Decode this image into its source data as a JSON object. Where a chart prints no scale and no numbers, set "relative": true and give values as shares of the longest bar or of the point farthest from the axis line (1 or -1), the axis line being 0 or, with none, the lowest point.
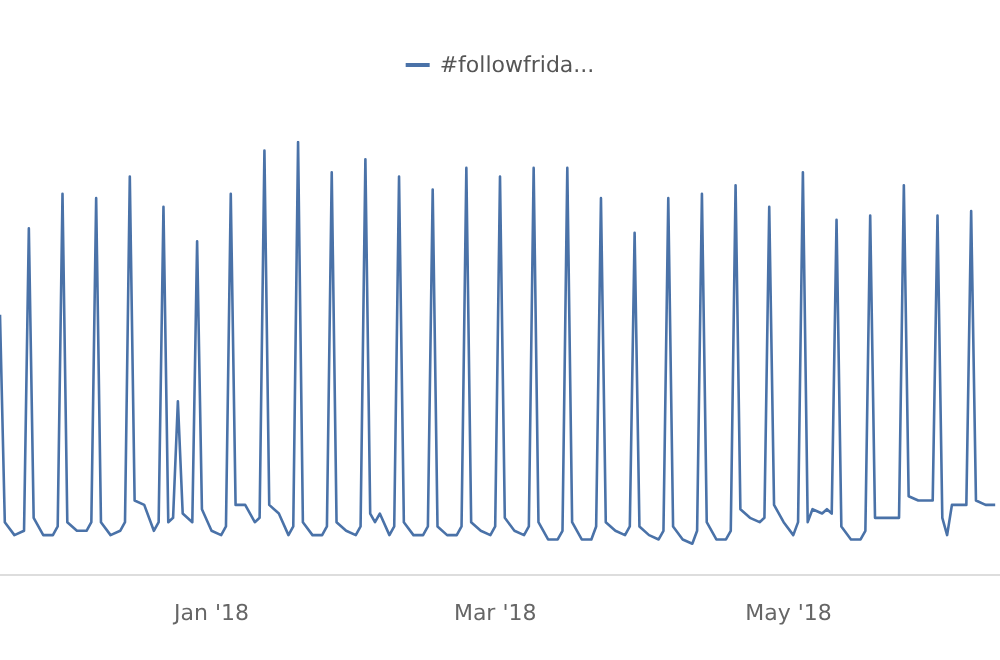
{
  "chart_data": {
    "type": "line",
    "relative": true,
    "legend": "top",
    "marker": "none",
    "line_style": "solid",
    "xlim": [
      "2017-11-18",
      "2018-06-14"
    ],
    "xticks": [
      {
        "value": "2018-01-01",
        "label": "Jan '18"
      },
      {
        "value": "2018-03-01",
        "label": "Mar '18"
      },
      {
        "value": "2018-05-01",
        "label": "May '18"
      }
    ],
    "series": [
      {
        "name": "#followfrida...",
        "color": "#4a72a8",
        "x": [
          "2017-11-18",
          "2017-11-19",
          "2017-11-21",
          "2017-11-23",
          "2017-11-24",
          "2017-11-25",
          "2017-11-27",
          "2017-11-29",
          "2017-11-30",
          "2017-12-01",
          "2017-12-02",
          "2017-12-04",
          "2017-12-06",
          "2017-12-07",
          "2017-12-08",
          "2017-12-09",
          "2017-12-11",
          "2017-12-13",
          "2017-12-14",
          "2017-12-15",
          "2017-12-16",
          "2017-12-18",
          "2017-12-20",
          "2017-12-21",
          "2017-12-22",
          "2017-12-23",
          "2017-12-24",
          "2017-12-25",
          "2017-12-26",
          "2017-12-28",
          "2017-12-29",
          "2017-12-30",
          "2018-01-01",
          "2018-01-03",
          "2018-01-04",
          "2018-01-05",
          "2018-01-06",
          "2018-01-08",
          "2018-01-10",
          "2018-01-11",
          "2018-01-12",
          "2018-01-13",
          "2018-01-15",
          "2018-01-17",
          "2018-01-18",
          "2018-01-19",
          "2018-01-20",
          "2018-01-22",
          "2018-01-24",
          "2018-01-25",
          "2018-01-26",
          "2018-01-27",
          "2018-01-29",
          "2018-01-31",
          "2018-02-01",
          "2018-02-02",
          "2018-02-03",
          "2018-02-04",
          "2018-02-05",
          "2018-02-07",
          "2018-02-08",
          "2018-02-09",
          "2018-02-10",
          "2018-02-12",
          "2018-02-14",
          "2018-02-15",
          "2018-02-16",
          "2018-02-17",
          "2018-02-19",
          "2018-02-21",
          "2018-02-22",
          "2018-02-23",
          "2018-02-24",
          "2018-02-26",
          "2018-02-28",
          "2018-03-01",
          "2018-03-02",
          "2018-03-03",
          "2018-03-05",
          "2018-03-07",
          "2018-03-08",
          "2018-03-09",
          "2018-03-10",
          "2018-03-12",
          "2018-03-14",
          "2018-03-15",
          "2018-03-16",
          "2018-03-17",
          "2018-03-19",
          "2018-03-21",
          "2018-03-22",
          "2018-03-23",
          "2018-03-24",
          "2018-03-26",
          "2018-03-28",
          "2018-03-29",
          "2018-03-30",
          "2018-03-31",
          "2018-04-02",
          "2018-04-04",
          "2018-04-05",
          "2018-04-06",
          "2018-04-07",
          "2018-04-09",
          "2018-04-11",
          "2018-04-12",
          "2018-04-13",
          "2018-04-14",
          "2018-04-16",
          "2018-04-18",
          "2018-04-19",
          "2018-04-20",
          "2018-04-21",
          "2018-04-23",
          "2018-04-25",
          "2018-04-26",
          "2018-04-27",
          "2018-04-28",
          "2018-04-30",
          "2018-05-02",
          "2018-05-03",
          "2018-05-04",
          "2018-05-05",
          "2018-05-06",
          "2018-05-08",
          "2018-05-09",
          "2018-05-10",
          "2018-05-11",
          "2018-05-12",
          "2018-05-14",
          "2018-05-16",
          "2018-05-17",
          "2018-05-18",
          "2018-05-19",
          "2018-05-21",
          "2018-05-23",
          "2018-05-24",
          "2018-05-25",
          "2018-05-26",
          "2018-05-28",
          "2018-05-30",
          "2018-05-31",
          "2018-06-01",
          "2018-06-02",
          "2018-06-03",
          "2018-06-04",
          "2018-06-06",
          "2018-06-07",
          "2018-06-08",
          "2018-06-09",
          "2018-06-11",
          "2018-06-13"
        ],
        "values": [
          0.6,
          0.12,
          0.09,
          0.1,
          0.8,
          0.13,
          0.09,
          0.09,
          0.11,
          0.88,
          0.12,
          0.1,
          0.1,
          0.12,
          0.87,
          0.12,
          0.09,
          0.1,
          0.12,
          0.92,
          0.17,
          0.16,
          0.1,
          0.12,
          0.85,
          0.12,
          0.13,
          0.4,
          0.14,
          0.12,
          0.77,
          0.15,
          0.1,
          0.09,
          0.11,
          0.88,
          0.16,
          0.16,
          0.12,
          0.13,
          0.98,
          0.16,
          0.14,
          0.09,
          0.11,
          1.0,
          0.12,
          0.09,
          0.09,
          0.11,
          0.93,
          0.12,
          0.1,
          0.09,
          0.11,
          0.96,
          0.14,
          0.12,
          0.14,
          0.09,
          0.11,
          0.92,
          0.12,
          0.09,
          0.09,
          0.11,
          0.89,
          0.11,
          0.09,
          0.09,
          0.11,
          0.94,
          0.12,
          0.1,
          0.09,
          0.11,
          0.92,
          0.13,
          0.1,
          0.09,
          0.11,
          0.94,
          0.12,
          0.08,
          0.08,
          0.1,
          0.94,
          0.12,
          0.08,
          0.08,
          0.11,
          0.87,
          0.12,
          0.1,
          0.09,
          0.11,
          0.79,
          0.11,
          0.09,
          0.08,
          0.1,
          0.87,
          0.11,
          0.08,
          0.07,
          0.1,
          0.88,
          0.12,
          0.08,
          0.08,
          0.1,
          0.9,
          0.15,
          0.13,
          0.12,
          0.13,
          0.85,
          0.16,
          0.12,
          0.09,
          0.12,
          0.93,
          0.12,
          0.15,
          0.14,
          0.15,
          0.14,
          0.82,
          0.11,
          0.08,
          0.08,
          0.1,
          0.83,
          0.13,
          0.13,
          0.13,
          0.13,
          0.9,
          0.18,
          0.17,
          0.17,
          0.17,
          0.83,
          0.13,
          0.09,
          0.16,
          0.16,
          0.16,
          0.84,
          0.17,
          0.16,
          0.16
        ]
      }
    ]
  }
}
